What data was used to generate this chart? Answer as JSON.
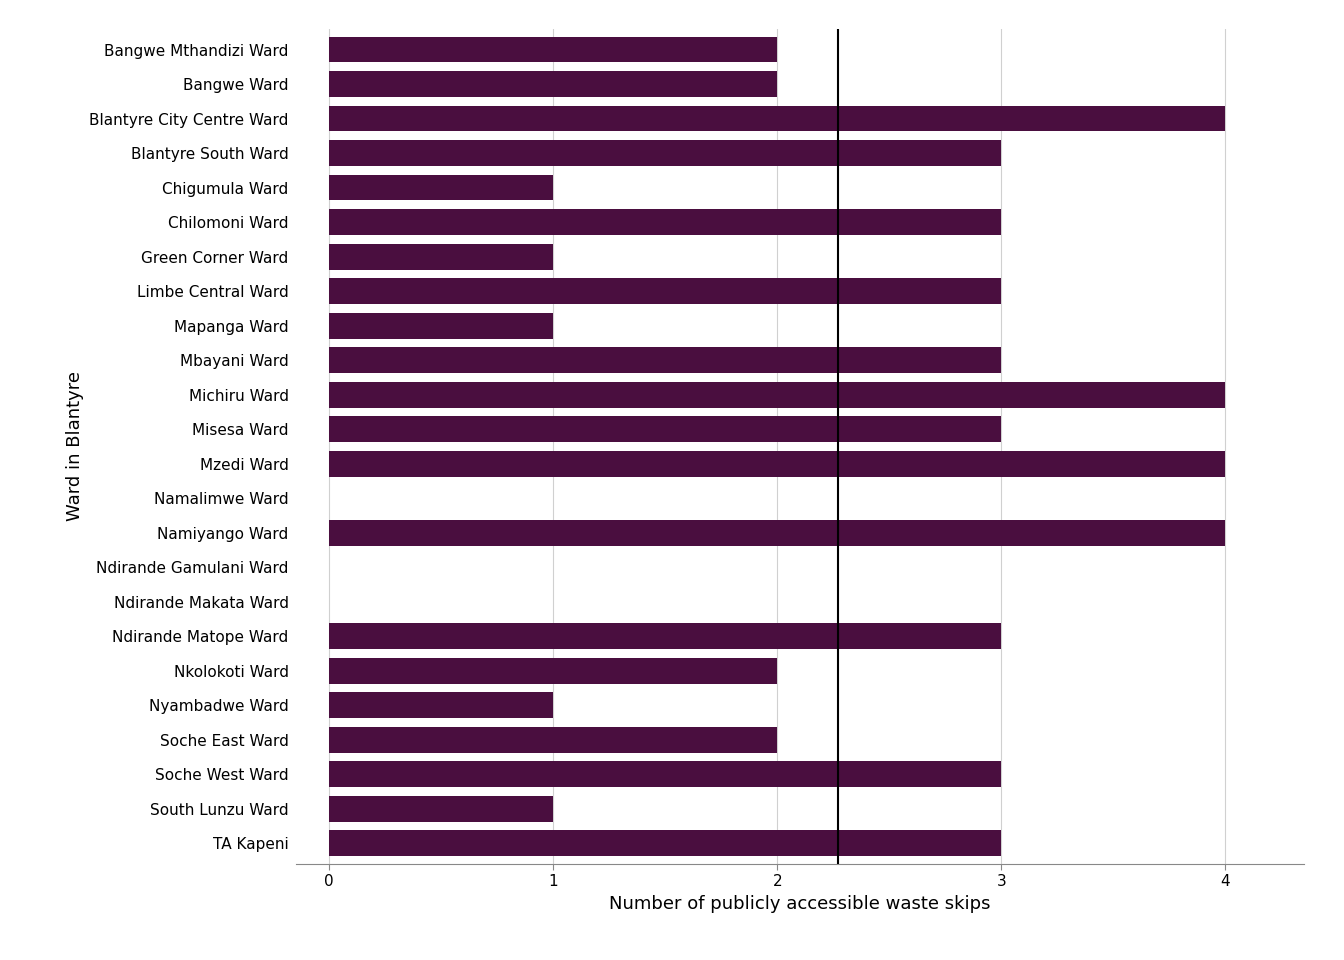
{
  "wards": [
    "Bangwe Mthandizi Ward",
    "Bangwe Ward",
    "Blantyre City Centre Ward",
    "Blantyre South Ward",
    "Chigumula Ward",
    "Chilomoni Ward",
    "Green Corner Ward",
    "Limbe Central Ward",
    "Mapanga Ward",
    "Mbayani Ward",
    "Michiru Ward",
    "Misesa Ward",
    "Mzedi Ward",
    "Namalimwe Ward",
    "Namiyango Ward",
    "Ndirande Gamulani Ward",
    "Ndirande Makata Ward",
    "Ndirande Matope Ward",
    "Nkolokoti Ward",
    "Nyambadwe Ward",
    "Soche East Ward",
    "Soche West Ward",
    "South Lunzu Ward",
    "TA Kapeni"
  ],
  "values": [
    2,
    2,
    4,
    3,
    1,
    3,
    1,
    3,
    1,
    3,
    4,
    3,
    4,
    0,
    4,
    0,
    0,
    3,
    2,
    1,
    2,
    3,
    1,
    3
  ],
  "bar_color": "#4a0e3f",
  "vline_x": 2.27,
  "xlabel": "Number of publicly accessible waste skips",
  "ylabel": "Ward in Blantyre",
  "xlim": [
    -0.15,
    4.35
  ],
  "xticks": [
    0,
    1,
    2,
    3,
    4
  ],
  "background_color": "#ffffff",
  "grid_color": "#d0d0d0",
  "bar_height": 0.75,
  "figsize": [
    13.44,
    9.6
  ],
  "xlabel_fontsize": 13,
  "ylabel_fontsize": 13,
  "tick_fontsize": 11
}
